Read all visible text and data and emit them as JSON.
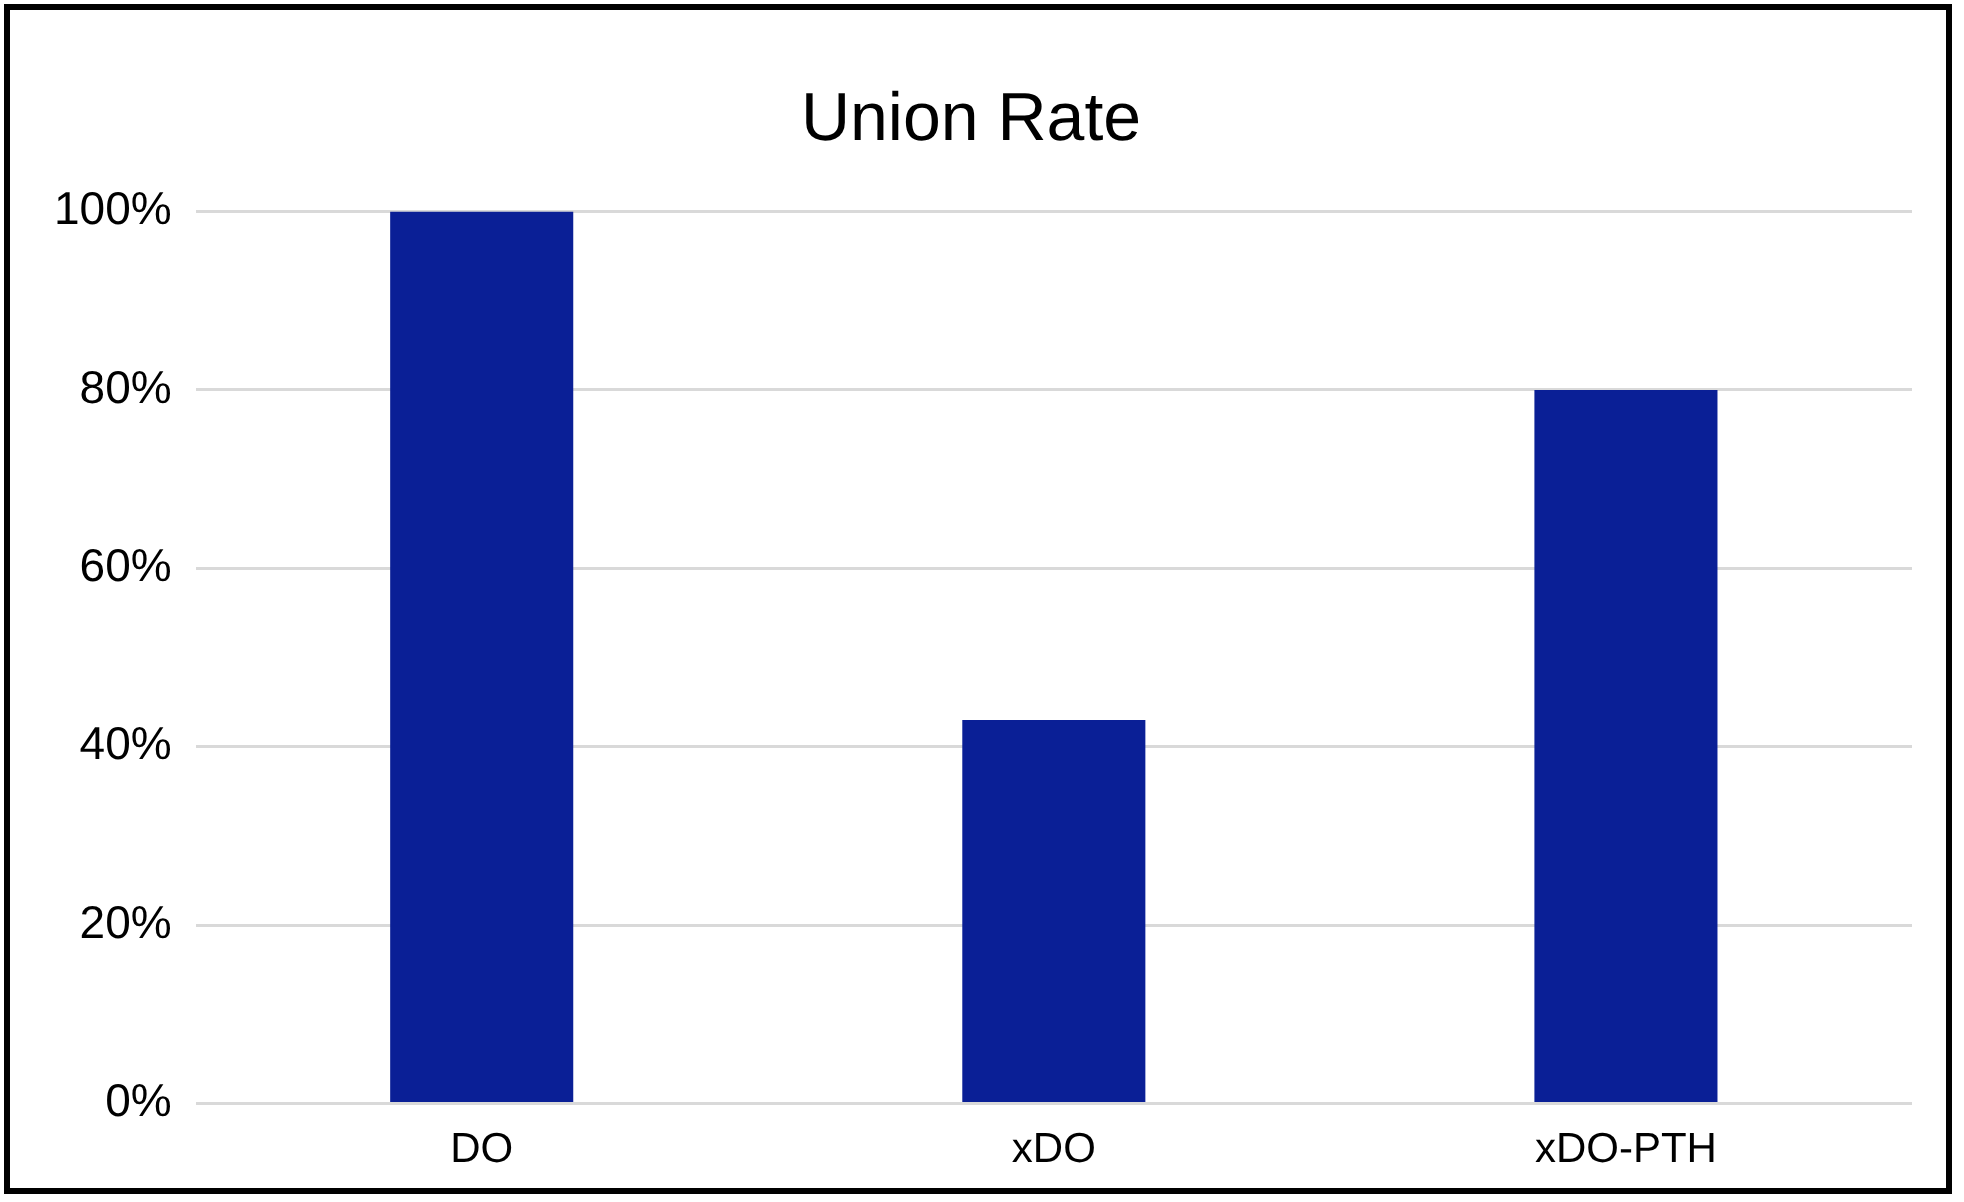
{
  "chart_data": {
    "type": "bar",
    "title": "Union Rate",
    "categories": [
      "DO",
      "xDO",
      "xDO-PTH"
    ],
    "values": [
      100,
      43,
      80
    ],
    "color": "#0a1f96",
    "ylim": [
      0,
      100
    ],
    "yticks": [
      {
        "value": 0,
        "label": "0%"
      },
      {
        "value": 20,
        "label": "20%"
      },
      {
        "value": 40,
        "label": "40%"
      },
      {
        "value": 60,
        "label": "60%"
      },
      {
        "value": 80,
        "label": "80%"
      },
      {
        "value": 100,
        "label": "100%"
      }
    ],
    "grid": "y"
  }
}
